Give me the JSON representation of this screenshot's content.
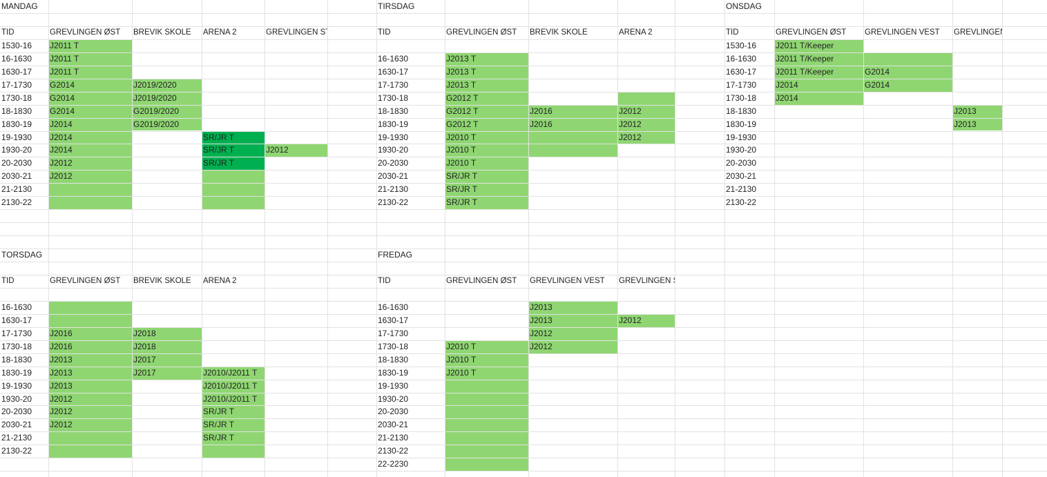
{
  "sections": [
    {
      "title": "MANDAG",
      "headers": [
        "TID",
        "GREVLINGEN ØST",
        "BREVIK SKOLE",
        "ARENA 2",
        "GREVLINGEN STYRKE"
      ],
      "rows": [
        [
          "1530-16",
          "J2011 T"
        ],
        [
          "16-1630",
          "J2011 T"
        ],
        [
          "1630-17",
          "J2011 T"
        ],
        [
          "17-1730",
          "G2014",
          "J2019/2020"
        ],
        [
          "1730-18",
          "G2014",
          "J2019/2020"
        ],
        [
          "18-1830",
          "G2014",
          "G2019/2020"
        ],
        [
          "1830-19",
          "J2014",
          "G2019/2020"
        ],
        [
          "19-1930",
          "J2014",
          null,
          "SR/JR T"
        ],
        [
          "1930-20",
          "J2014",
          null,
          "SR/JR T",
          "J2012"
        ],
        [
          "20-2030",
          "J2012",
          null,
          "SR/JR T"
        ],
        [
          "2030-21",
          "J2012"
        ],
        [
          "21-2130"
        ],
        [
          "2130-22"
        ]
      ]
    },
    {
      "title": "TIRSDAG",
      "headers": [
        "TID",
        "GREVLINGEN ØST",
        "BREVIK SKOLE",
        "ARENA 2"
      ],
      "rows": [
        [
          "16-1630",
          "J2013 T"
        ],
        [
          "1630-17",
          "J2013 T"
        ],
        [
          "17-1730",
          "J2013 T"
        ],
        [
          "1730-18",
          "G2012 T"
        ],
        [
          "18-1830",
          "G2012 T",
          "J2016",
          "J2012"
        ],
        [
          "1830-19",
          "G2012 T",
          "J2016",
          "J2012"
        ],
        [
          "19-1930",
          "J2010 T",
          null,
          "J2012"
        ],
        [
          "1930-20",
          "J2010 T"
        ],
        [
          "20-2030",
          "J2010 T"
        ],
        [
          "2030-21",
          "SR/JR T"
        ],
        [
          "21-2130",
          "SR/JR T"
        ],
        [
          "2130-22",
          "SR/JR T"
        ]
      ]
    },
    {
      "title": "ONSDAG",
      "headers": [
        "TID",
        "GREVLINGEN ØST",
        "GREVLINGEN VEST",
        "GREVLINGEN STYRKE"
      ],
      "rows": [
        [
          "1530-16",
          "J2011 T/Keeper"
        ],
        [
          "16-1630",
          "J2011 T/Keeper"
        ],
        [
          "1630-17",
          "J2011 T/Keeper",
          "G2014"
        ],
        [
          "17-1730",
          "J2014",
          "G2014"
        ],
        [
          "1730-18",
          "J2014"
        ],
        [
          "18-1830",
          null,
          null,
          "J2013"
        ],
        [
          "1830-19",
          null,
          null,
          "J2013"
        ],
        [
          "19-1930"
        ],
        [
          "1930-20"
        ],
        [
          "20-2030"
        ],
        [
          "2030-21"
        ],
        [
          "21-2130"
        ],
        [
          "2130-22"
        ]
      ]
    },
    {
      "title": "TORSDAG",
      "headers": [
        "TID",
        "GREVLINGEN ØST",
        "BREVIK SKOLE",
        "ARENA 2"
      ],
      "rows": [
        [
          "16-1630"
        ],
        [
          "1630-17"
        ],
        [
          "17-1730",
          "J2016",
          "J2018"
        ],
        [
          "1730-18",
          "J2016",
          "J2018"
        ],
        [
          "18-1830",
          "J2013",
          "J2017"
        ],
        [
          "1830-19",
          "J2013",
          "J2017",
          "J2010/J2011 T"
        ],
        [
          "19-1930",
          "J2013",
          null,
          "J2010/J2011 T"
        ],
        [
          "1930-20",
          "J2012",
          null,
          "J2010/J2011 T"
        ],
        [
          "20-2030",
          "J2012",
          null,
          "SR/JR T"
        ],
        [
          "2030-21",
          "J2012",
          null,
          "SR/JR T"
        ],
        [
          "21-2130",
          null,
          null,
          "SR/JR T"
        ],
        [
          "2130-22"
        ]
      ]
    },
    {
      "title": "FREDAG",
      "headers": [
        "TID",
        "GREVLINGEN ØST",
        "GREVLINGEN VEST",
        "GREVLINGEN STYRKE"
      ],
      "rows": [
        [
          "16-1630",
          null,
          "J2013"
        ],
        [
          "1630-17",
          null,
          "J2013",
          "J2012"
        ],
        [
          "17-1730",
          null,
          "J2012"
        ],
        [
          "1730-18",
          "J2010 T",
          "J2012"
        ],
        [
          "18-1830",
          "J2010 T"
        ],
        [
          "1830-19",
          "J2010 T"
        ],
        [
          "19-1930"
        ],
        [
          "1930-20"
        ],
        [
          "20-2030"
        ],
        [
          "2030-21"
        ],
        [
          "21-2130"
        ],
        [
          "2130-22"
        ],
        [
          "22-2230"
        ]
      ]
    }
  ]
}
